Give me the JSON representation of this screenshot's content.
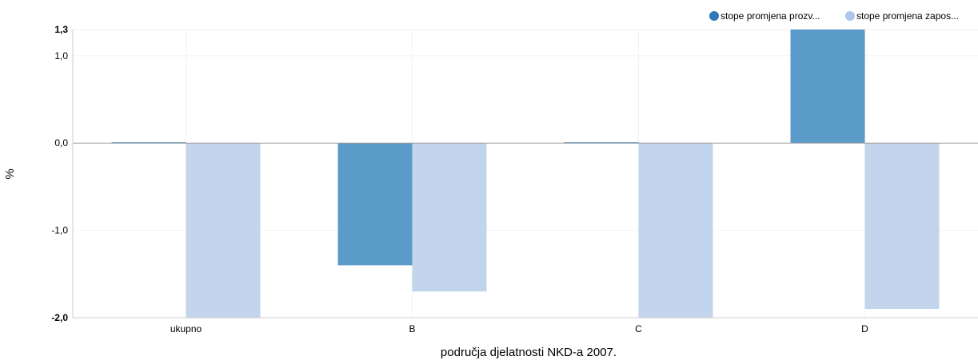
{
  "chart_data": {
    "type": "bar",
    "title": "",
    "xlabel": "područja djelatnosti NKD-a 2007.",
    "ylabel": "%",
    "categories": [
      "ukupno",
      "B",
      "C",
      "D"
    ],
    "series": [
      {
        "name": "stope promjena prozv...",
        "color": "#5a9bc9",
        "legend_color": "#2f78b9",
        "values": [
          0.01,
          -1.4,
          0.01,
          1.3
        ]
      },
      {
        "name": "stope promjena zapos...",
        "color": "#c3d5ed",
        "legend_color": "#aec7ea",
        "values": [
          -2.0,
          -1.7,
          -2.0,
          -1.9
        ]
      }
    ],
    "ylim": [
      -2.0,
      1.3
    ],
    "yticks": [
      {
        "value": 1.3,
        "label": "1,3",
        "bold": true
      },
      {
        "value": 1.0,
        "label": "1,0",
        "bold": false
      },
      {
        "value": 0.0,
        "label": "0,0",
        "bold": false
      },
      {
        "value": -1.0,
        "label": "-1,0",
        "bold": false
      },
      {
        "value": -2.0,
        "label": "-2,0",
        "bold": true
      }
    ],
    "grid": true,
    "legend_position": "top-right"
  }
}
